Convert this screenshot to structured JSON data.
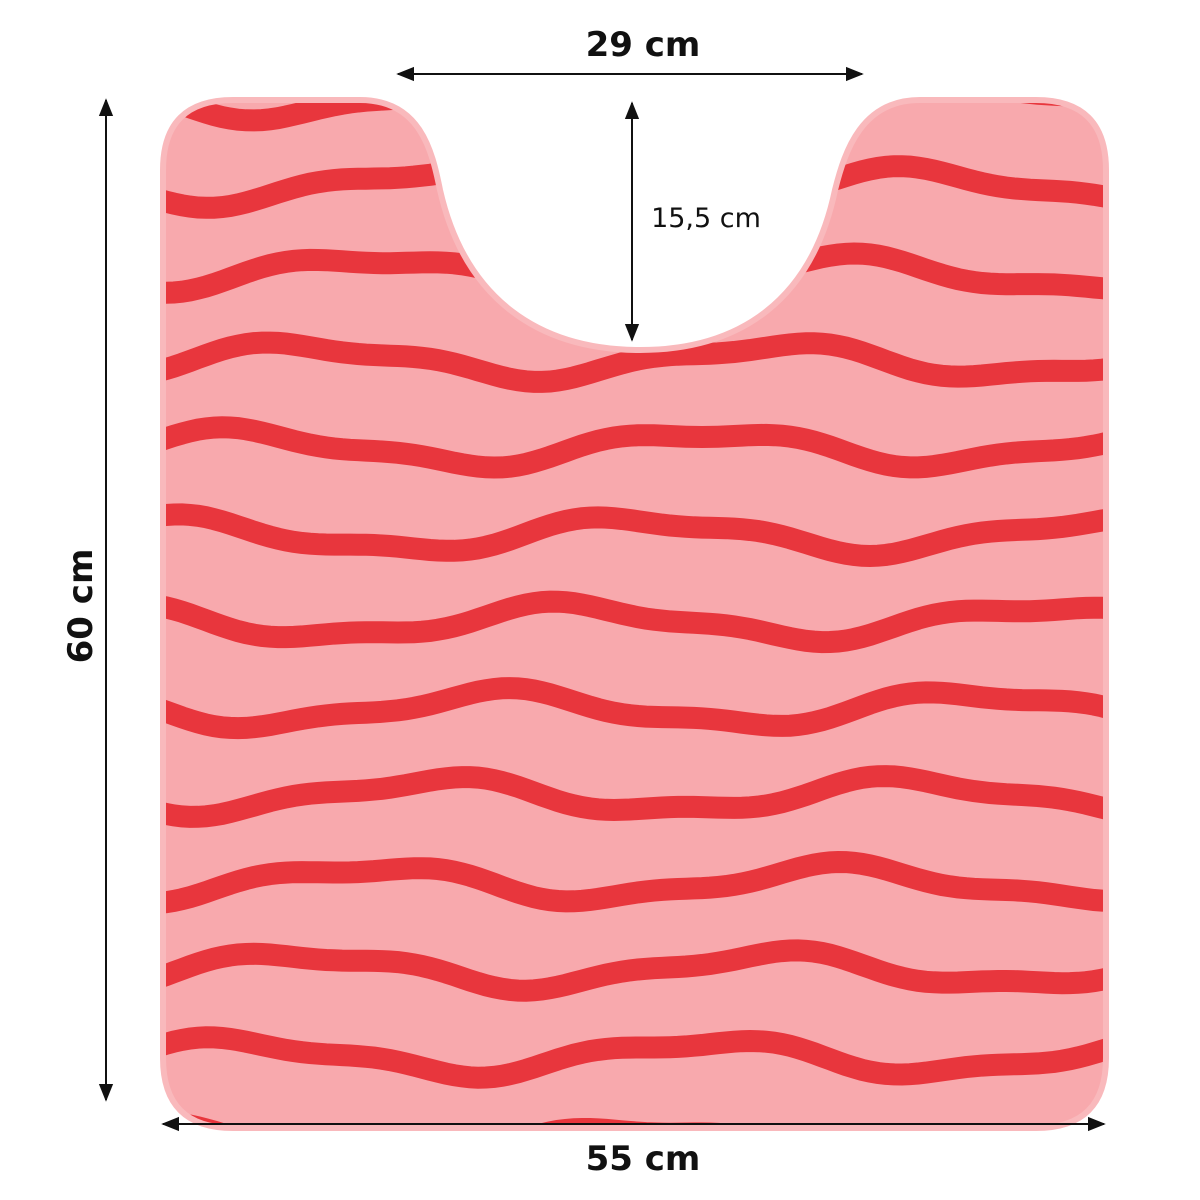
{
  "dimensions": {
    "top_width": "29 cm",
    "notch_depth": "15,5 cm",
    "height": "60 cm",
    "bottom_width": "55 cm"
  }
}
